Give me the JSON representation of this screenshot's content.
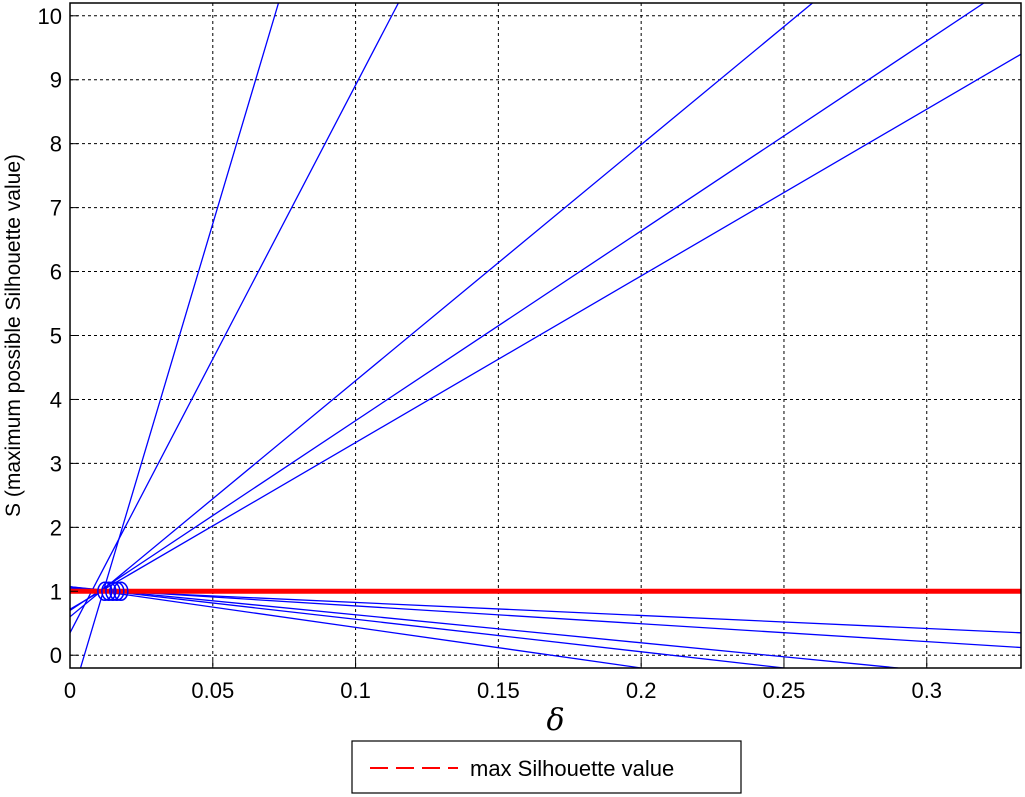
{
  "chart_data": {
    "type": "line",
    "xlabel": "δ",
    "ylabel": "S (maximum possible Silhouette value)",
    "xlim": [
      0,
      0.333
    ],
    "ylim": [
      -0.2,
      10.2
    ],
    "xticks": [
      0,
      0.05,
      0.1,
      0.15,
      0.2,
      0.25,
      0.3
    ],
    "xtick_labels": [
      "0",
      "0.05",
      "0.1",
      "0.15",
      "0.2",
      "0.25",
      "0.3"
    ],
    "yticks": [
      0,
      1,
      2,
      3,
      4,
      5,
      6,
      7,
      8,
      9,
      10
    ],
    "ytick_labels": [
      "0",
      "1",
      "2",
      "3",
      "4",
      "5",
      "6",
      "7",
      "8",
      "9",
      "10"
    ],
    "grid": true,
    "legend": {
      "placement": "bottom-center"
    },
    "curves_color": "#0000ff",
    "reference_color": "#ff0000",
    "series": [
      {
        "x": [
          0.003,
          0.073
        ],
        "y": [
          -0.3,
          10.2
        ]
      },
      {
        "x": [
          0.0,
          0.115
        ],
        "y": [
          0.35,
          10.2
        ]
      },
      {
        "x": [
          0.0,
          0.26
        ],
        "y": [
          0.6,
          10.2
        ]
      },
      {
        "x": [
          0.0,
          0.32
        ],
        "y": [
          0.7,
          10.2
        ]
      },
      {
        "x": [
          0.0,
          0.333
        ],
        "y": [
          0.72,
          9.4
        ]
      },
      {
        "x": [
          0.0,
          0.333
        ],
        "y": [
          1.03,
          0.35
        ]
      },
      {
        "x": [
          0.0,
          0.333
        ],
        "y": [
          1.05,
          0.12
        ]
      },
      {
        "x": [
          0.0,
          0.2
        ],
        "y": [
          1.07,
          -0.2
        ]
      },
      {
        "x": [
          0.0,
          0.25
        ],
        "y": [
          1.07,
          -0.2
        ]
      },
      {
        "x": [
          0.0,
          0.29
        ],
        "y": [
          1.07,
          -0.2
        ]
      }
    ],
    "reference_line": {
      "name": "max Silhouette value",
      "y": 1
    },
    "marker_cluster": {
      "x": 0.015,
      "y": 1.0
    }
  }
}
